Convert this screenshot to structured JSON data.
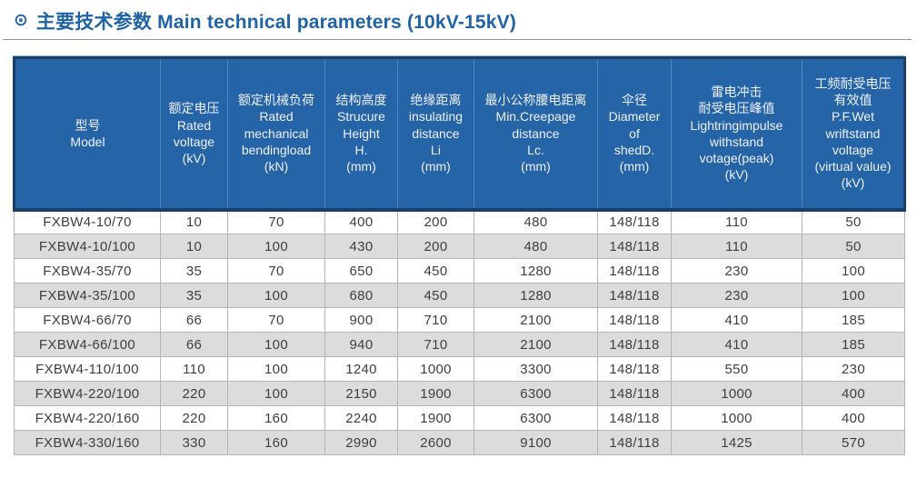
{
  "header": {
    "icon": "⊙",
    "title": "主要技术参数 Main technical parameters (10kV-15kV)"
  },
  "colors": {
    "title_blue": "#2163a4",
    "header_bg": "#2564a7",
    "header_border_navy": "#1b4068",
    "header_divider_blue": "#4f86bf",
    "row_alt_gray": "#dcdcdc",
    "cell_border_gray": "#b5b5b5"
  },
  "table": {
    "columns": [
      {
        "label": "型号\nModel"
      },
      {
        "label": "额定电压\nRated\nvoltage\n(kV)"
      },
      {
        "label": "额定机械负荷\nRated\nmechanical\nbendingload\n(kN)"
      },
      {
        "label": "结构高度\nStrucure\nHeight\nH.\n(mm)"
      },
      {
        "label": "绝缘距离\ninsulating\ndistance\nLi\n(mm)"
      },
      {
        "label": "最小公称腰电距离\nMin.Creepage\ndistance\nLc.\n(mm)"
      },
      {
        "label": "伞径\nDiameter\nof\nshedD.\n(mm)"
      },
      {
        "label": "雷电冲击\n耐受电压峰值\nLightringimpulse\nwithstand\nvotage(peak)\n(kV)"
      },
      {
        "label": "工频耐受电压\n有效值\nP.F.Wet\nwriftstand\nvoltage\n(virtual value)\n(kV)"
      }
    ],
    "rows": [
      [
        "FXBW4-10/70",
        "10",
        "70",
        "400",
        "200",
        "480",
        "148/118",
        "110",
        "50"
      ],
      [
        "FXBW4-10/100",
        "10",
        "100",
        "430",
        "200",
        "480",
        "148/118",
        "110",
        "50"
      ],
      [
        "FXBW4-35/70",
        "35",
        "70",
        "650",
        "450",
        "1280",
        "148/118",
        "230",
        "100"
      ],
      [
        "FXBW4-35/100",
        "35",
        "100",
        "680",
        "450",
        "1280",
        "148/118",
        "230",
        "100"
      ],
      [
        "FXBW4-66/70",
        "66",
        "70",
        "900",
        "710",
        "2100",
        "148/118",
        "410",
        "185"
      ],
      [
        "FXBW4-66/100",
        "66",
        "100",
        "940",
        "710",
        "2100",
        "148/118",
        "410",
        "185"
      ],
      [
        "FXBW4-110/100",
        "110",
        "100",
        "1240",
        "1000",
        "3300",
        "148/118",
        "550",
        "230"
      ],
      [
        "FXBW4-220/100",
        "220",
        "100",
        "2150",
        "1900",
        "6300",
        "148/118",
        "1000",
        "400"
      ],
      [
        "FXBW4-220/160",
        "220",
        "160",
        "2240",
        "1900",
        "6300",
        "148/118",
        "1000",
        "400"
      ],
      [
        "FXBW4-330/160",
        "330",
        "160",
        "2990",
        "2600",
        "9100",
        "148/118",
        "1425",
        "570"
      ]
    ]
  }
}
